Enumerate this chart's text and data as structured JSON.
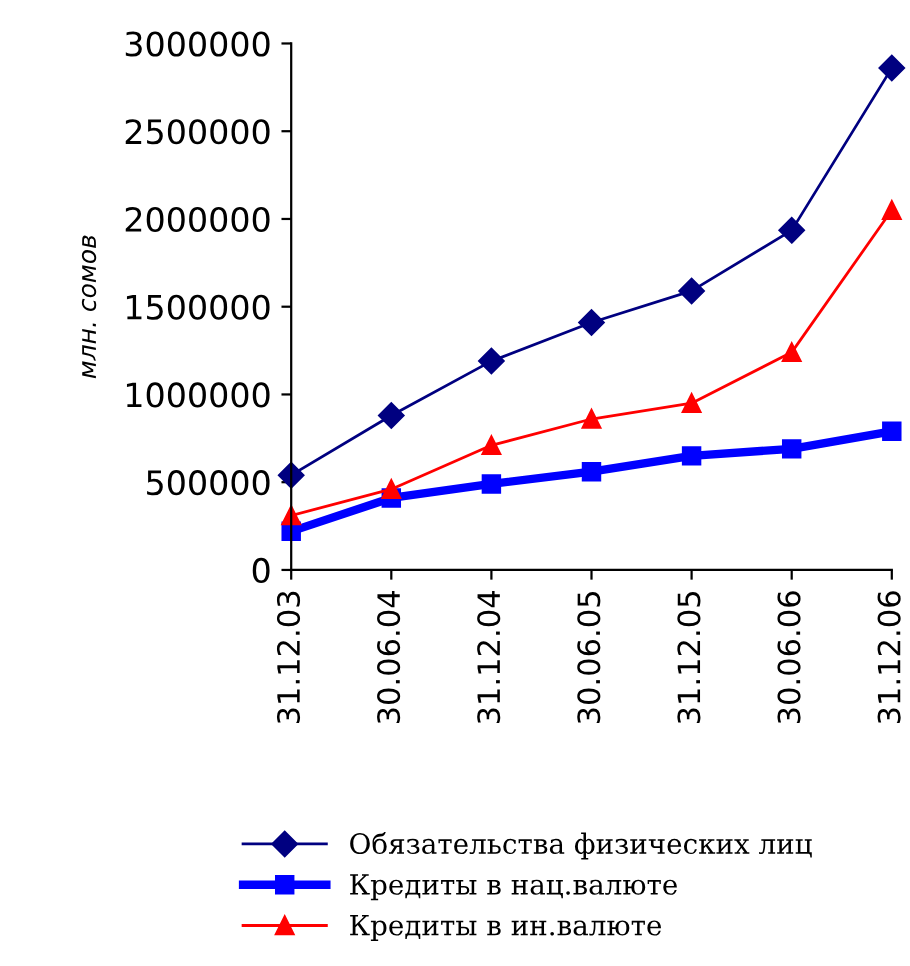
{
  "chart_data": {
    "type": "line",
    "ylabel": "млн. сомов",
    "categories": [
      "31.12.03",
      "30.06.04",
      "31.12.04",
      "30.06.05",
      "31.12.05",
      "30.06.06",
      "31.12.06"
    ],
    "series": [
      {
        "name": "Обязательства физических лиц",
        "color": "#000080",
        "marker": "diamond",
        "values": [
          540000,
          880000,
          1190000,
          1410000,
          1590000,
          1935000,
          2860000
        ]
      },
      {
        "name": "Кредиты в нац.валюте",
        "color": "#0000ff",
        "marker": "square",
        "values": [
          220000,
          410000,
          490000,
          560000,
          650000,
          690000,
          790000
        ]
      },
      {
        "name": "Кредиты в ин.валюте",
        "color": "#ff0000",
        "marker": "triangle",
        "values": [
          310000,
          460000,
          710000,
          860000,
          950000,
          1240000,
          2050000
        ]
      }
    ],
    "ylim": [
      0,
      3000000
    ],
    "yticks": [
      0,
      500000,
      1000000,
      1500000,
      2000000,
      2500000,
      3000000
    ],
    "grid": false,
    "legend": "bottom",
    "line_style": "solid"
  }
}
